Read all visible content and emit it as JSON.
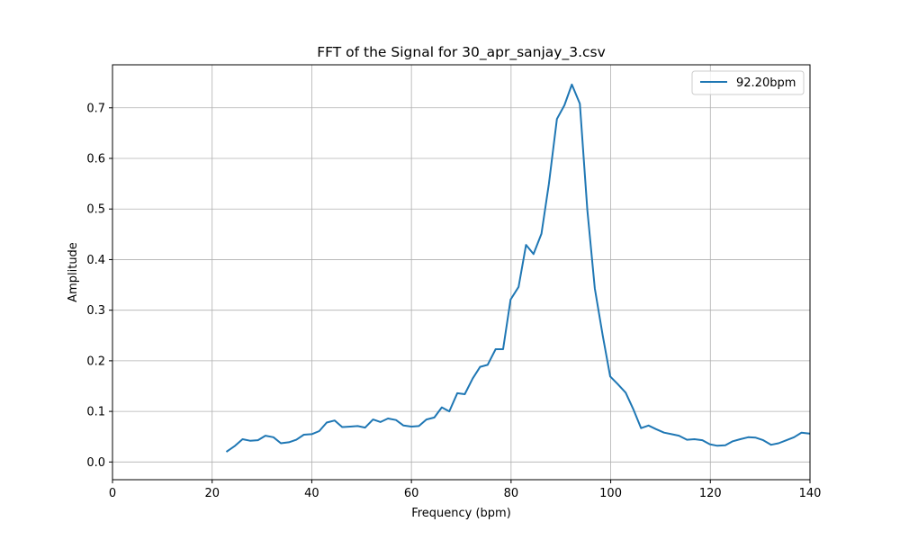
{
  "chart_data": {
    "type": "line",
    "title": "FFT of the Signal for 30_apr_sanjay_3.csv",
    "xlabel": "Frequency (bpm)",
    "ylabel": "Amplitude",
    "xlim": [
      0,
      140
    ],
    "ylim": [
      -0.035,
      0.785
    ],
    "xticks": [
      0,
      20,
      40,
      60,
      80,
      100,
      120,
      140
    ],
    "yticks": [
      0.0,
      0.1,
      0.2,
      0.3,
      0.4,
      0.5,
      0.6,
      0.7
    ],
    "xtick_labels": [
      "0",
      "20",
      "40",
      "60",
      "80",
      "100",
      "120",
      "140"
    ],
    "ytick_labels": [
      "0.0",
      "0.1",
      "0.2",
      "0.3",
      "0.4",
      "0.5",
      "0.6",
      "0.7"
    ],
    "grid": true,
    "legend_position": "top-right",
    "series": [
      {
        "name": "92.20bpm",
        "color": "#1f77b4",
        "x": [
          23.0,
          24.6,
          26.1,
          27.6,
          29.2,
          30.7,
          32.3,
          33.8,
          35.4,
          36.9,
          38.4,
          40.0,
          41.5,
          43.0,
          44.6,
          46.1,
          47.7,
          49.2,
          50.7,
          52.3,
          53.8,
          55.3,
          56.9,
          58.4,
          60.0,
          61.5,
          63.0,
          64.6,
          66.1,
          67.6,
          69.2,
          70.7,
          72.3,
          73.8,
          75.3,
          76.9,
          78.4,
          79.9,
          81.5,
          83.0,
          84.5,
          86.1,
          87.6,
          89.2,
          90.7,
          92.2,
          93.8,
          95.3,
          96.8,
          98.4,
          99.9,
          101.4,
          103.0,
          104.5,
          106.1,
          107.6,
          109.1,
          110.7,
          112.2,
          113.7,
          115.3,
          116.8,
          118.4,
          119.9,
          121.4,
          123.0,
          124.5,
          126.0,
          127.6,
          129.1,
          130.6,
          132.2,
          133.7,
          135.3,
          136.8,
          138.3,
          139.9
        ],
        "y": [
          0.021,
          0.032,
          0.045,
          0.042,
          0.043,
          0.052,
          0.049,
          0.037,
          0.039,
          0.044,
          0.054,
          0.055,
          0.061,
          0.078,
          0.082,
          0.069,
          0.07,
          0.071,
          0.068,
          0.084,
          0.079,
          0.086,
          0.083,
          0.072,
          0.07,
          0.071,
          0.084,
          0.088,
          0.108,
          0.1,
          0.136,
          0.134,
          0.165,
          0.188,
          0.192,
          0.223,
          0.223,
          0.321,
          0.346,
          0.429,
          0.411,
          0.451,
          0.55,
          0.678,
          0.705,
          0.746,
          0.708,
          0.498,
          0.343,
          0.25,
          0.169,
          0.154,
          0.137,
          0.105,
          0.067,
          0.072,
          0.065,
          0.058,
          0.055,
          0.052,
          0.044,
          0.045,
          0.043,
          0.035,
          0.032,
          0.033,
          0.041,
          0.045,
          0.049,
          0.048,
          0.043,
          0.034,
          0.037,
          0.043,
          0.049,
          0.058,
          0.056
        ]
      }
    ]
  }
}
